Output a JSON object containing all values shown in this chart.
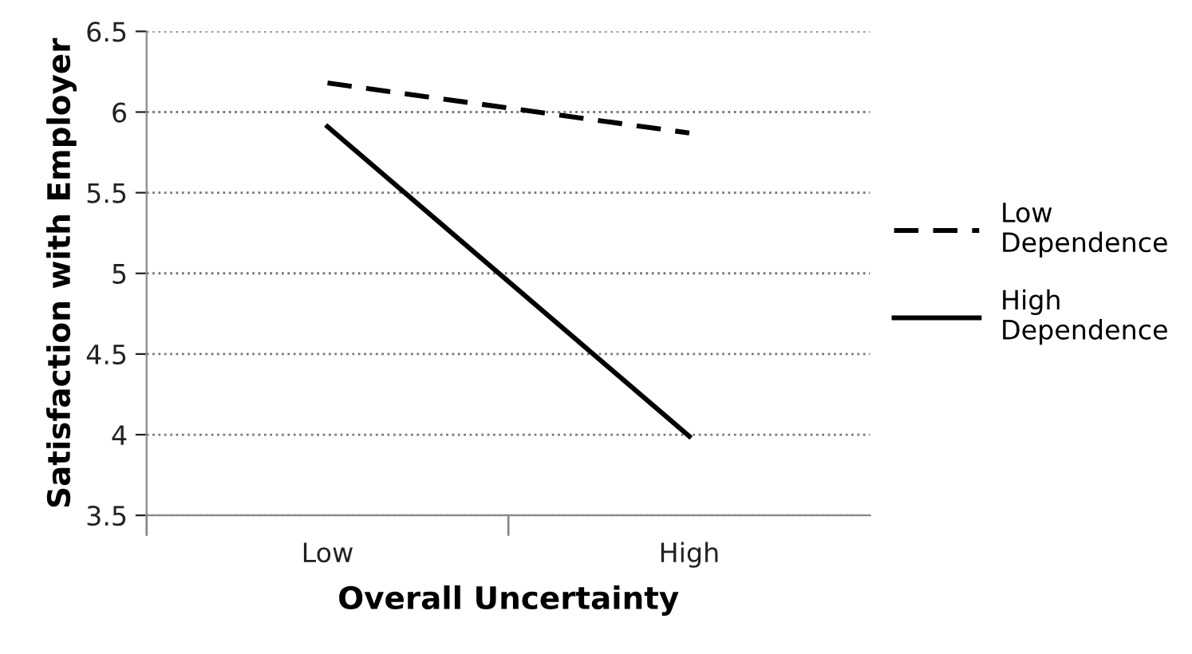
{
  "chart_data": {
    "type": "line",
    "xlabel": "Overall Uncertainty",
    "ylabel": "Satisfaction with Employer",
    "categories": [
      "Low",
      "High"
    ],
    "series": [
      {
        "name": "Low Dependence",
        "color": "#000000",
        "values": [
          6.18,
          5.87
        ],
        "line_style": "dashed"
      },
      {
        "name": "High Dependence",
        "color": "#000000",
        "values": [
          5.91,
          3.99
        ],
        "line_style": "solid"
      }
    ],
    "ylim": [
      3.5,
      6.5
    ],
    "yticks": [
      3.5,
      4,
      4.5,
      5,
      5.5,
      6,
      6.5
    ],
    "grid": "y",
    "legend": "right",
    "marker": "none"
  }
}
